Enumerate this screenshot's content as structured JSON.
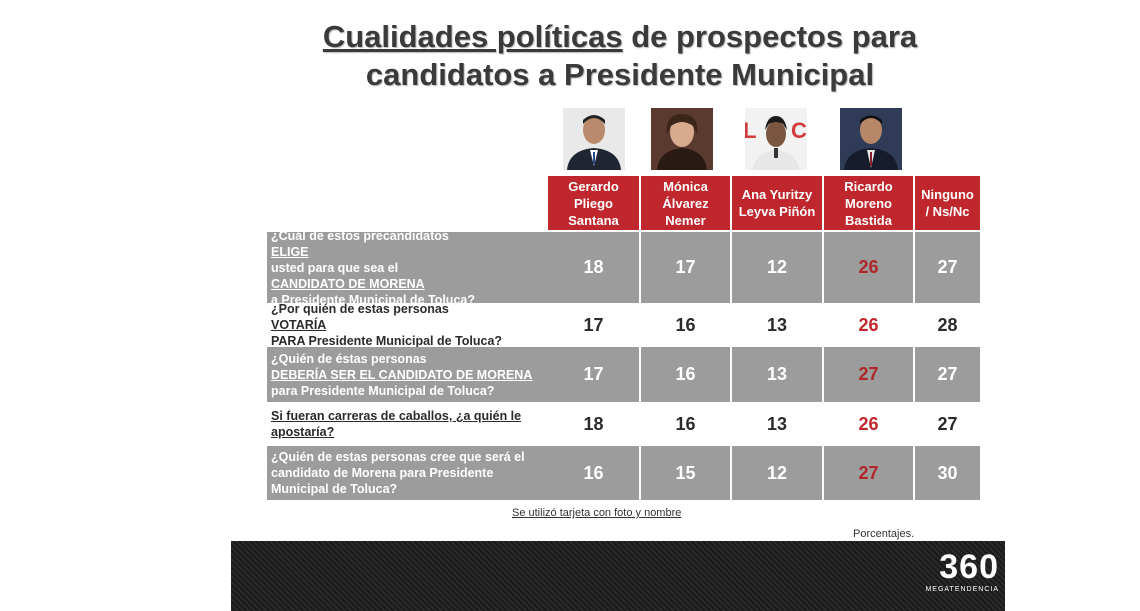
{
  "title": {
    "part1_underlined": "Cualidades políticas",
    "part1_rest": " de prospectos para",
    "line2": "candidatos a Presidente Municipal"
  },
  "candidates": [
    {
      "name": "Gerardo Pliego Santana"
    },
    {
      "name": "Mónica Álvarez Nemer"
    },
    {
      "name": "Ana Yuritzy Leyva Piñón"
    },
    {
      "name": "Ricardo Moreno Bastida"
    },
    {
      "name": "Ninguno / Ns/Nc"
    }
  ],
  "questions": [
    {
      "parts": [
        "¿Cuál de estos precandidatos ",
        "ELIGE",
        " usted para que sea el ",
        "CANDIDATO DE MORENA",
        " a Presidente Municipal de Toluca?"
      ],
      "values": [
        "18",
        "17",
        "12",
        "26",
        "27"
      ]
    },
    {
      "parts": [
        "¿Por quién de estas personas ",
        "VOTARÍA",
        " PARA Presidente Municipal de Toluca?"
      ],
      "values": [
        "17",
        "16",
        "13",
        "26",
        "28"
      ]
    },
    {
      "parts": [
        "¿Quién de éstas personas ",
        "DEBERÍA SER EL CANDIDATO DE MORENA",
        " para Presidente Municipal de Toluca?"
      ],
      "values": [
        "17",
        "16",
        "13",
        "27",
        "27"
      ]
    },
    {
      "parts": [
        "",
        "Si fueran carreras de caballos, ¿a quién le apostaría?"
      ],
      "values": [
        "18",
        "16",
        "13",
        "26",
        "27"
      ]
    },
    {
      "parts": [
        "¿Quién de estas personas cree que será el candidato de Morena para Presidente Municipal de Toluca?"
      ],
      "values": [
        "16",
        "15",
        "12",
        "27",
        "30"
      ]
    }
  ],
  "footnote": "Se utilizó tarjeta con foto y nombre",
  "units_note": "Porcentajes.",
  "logo": {
    "main": "360",
    "sub": "MEGATENDENCIA"
  },
  "colors": {
    "header_red": "#c0272d",
    "row_gray": "#9c9c9c",
    "highlight_red": "#c0272d"
  }
}
